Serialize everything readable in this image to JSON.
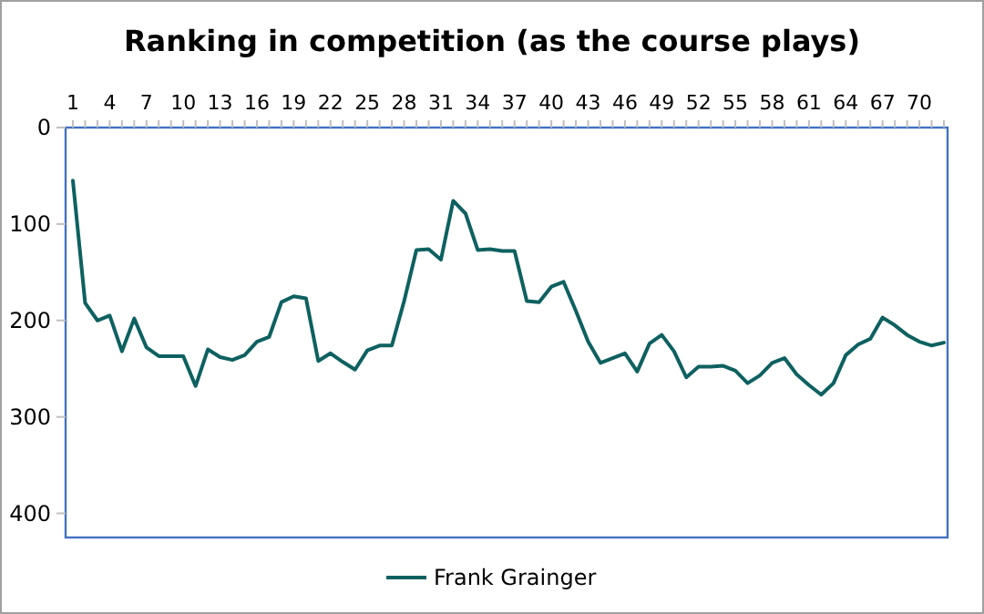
{
  "chart_data": {
    "type": "line",
    "title": "Ranking in competition (as the course plays)",
    "categories": [
      "1",
      null,
      null,
      "4",
      null,
      null,
      "7",
      null,
      null,
      "10",
      null,
      null,
      "13",
      null,
      null,
      "16",
      null,
      null,
      "19",
      null,
      null,
      "22",
      null,
      null,
      "25",
      null,
      null,
      "28",
      null,
      null,
      "31",
      null,
      null,
      "34",
      null,
      null,
      "37",
      null,
      null,
      "40",
      null,
      null,
      "43",
      null,
      null,
      "46",
      null,
      null,
      "49",
      null,
      null,
      "52",
      null,
      null,
      "55",
      null,
      null,
      "58",
      null,
      null,
      "61",
      null,
      null,
      "64",
      null,
      null,
      "67",
      null,
      null,
      "70",
      null,
      null
    ],
    "series": [
      {
        "name": "Frank Grainger",
        "color": "#0e6160",
        "values": [
          55,
          182,
          200,
          195,
          232,
          198,
          228,
          237,
          237,
          237,
          268,
          230,
          238,
          241,
          236,
          222,
          217,
          181,
          175,
          177,
          242,
          234,
          243,
          251,
          231,
          226,
          226,
          180,
          127,
          126,
          137,
          76,
          89,
          127,
          126,
          128,
          128,
          180,
          181,
          165,
          160,
          190,
          222,
          244,
          239,
          234,
          253,
          224,
          215,
          232,
          259,
          248,
          248,
          247,
          252,
          265,
          257,
          244,
          239,
          256,
          267,
          277,
          265,
          236,
          225,
          219,
          197,
          205,
          215,
          222,
          226,
          223
        ]
      }
    ],
    "ylim": [
      425,
      0
    ],
    "yticks": [
      0,
      100,
      200,
      300,
      400
    ],
    "grid": false,
    "legend": "bottom",
    "marker": "none",
    "line_style": "solid"
  }
}
